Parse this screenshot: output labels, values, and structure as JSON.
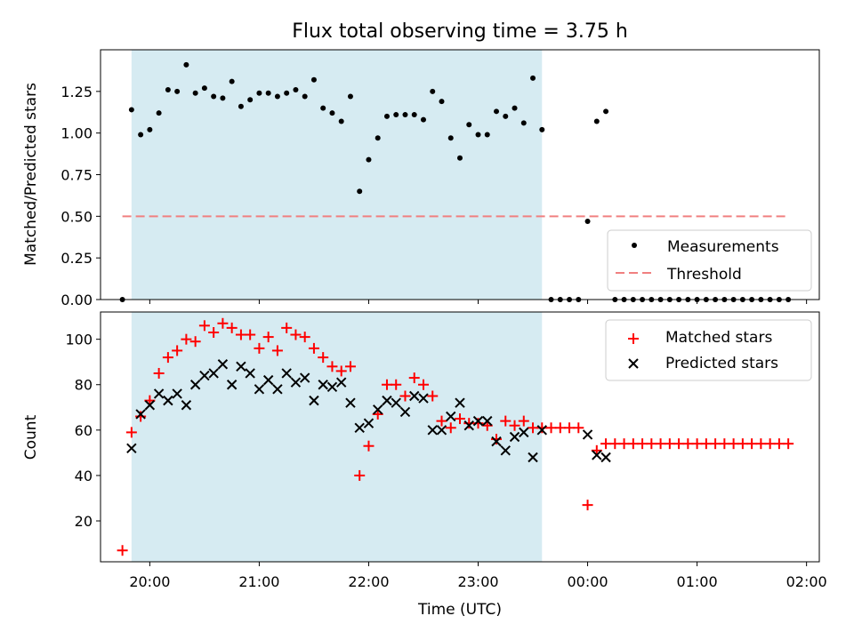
{
  "figure": {
    "title": "Flux total observing time = 3.75 h",
    "xlabel": "Time (UTC)",
    "x_ticks": [
      "20:00",
      "21:00",
      "22:00",
      "23:00",
      "00:00",
      "01:00",
      "02:00"
    ]
  },
  "colors": {
    "band": "#add8e6",
    "threshold": "#f08080",
    "matched": "#ff0000",
    "predicted": "#000000",
    "measurement": "#000000"
  },
  "chart_data": [
    {
      "type": "scatter",
      "panel": "top",
      "ylabel": "Matched/Predicted stars",
      "ylim": [
        0,
        1.5
      ],
      "yticks": [
        "0.00",
        "0.25",
        "0.50",
        "0.75",
        "1.00",
        "1.25"
      ],
      "xlim": [
        "19:33",
        "02:07"
      ],
      "shaded_interval": [
        "19:50",
        "23:35"
      ],
      "threshold": {
        "name": "Threshold",
        "value": 0.5,
        "x_range": [
          "19:45",
          "01:50"
        ]
      },
      "legend": {
        "position": "lower-right",
        "entries": [
          "Measurements",
          "Threshold"
        ]
      },
      "series": [
        {
          "name": "Measurements",
          "x": [
            "19:45",
            "19:50",
            "19:55",
            "20:00",
            "20:05",
            "20:10",
            "20:15",
            "20:20",
            "20:25",
            "20:30",
            "20:35",
            "20:40",
            "20:45",
            "20:50",
            "20:55",
            "21:00",
            "21:05",
            "21:10",
            "21:15",
            "21:20",
            "21:25",
            "21:30",
            "21:35",
            "21:40",
            "21:45",
            "21:50",
            "21:55",
            "22:00",
            "22:05",
            "22:10",
            "22:15",
            "22:20",
            "22:25",
            "22:30",
            "22:35",
            "22:40",
            "22:45",
            "22:50",
            "22:55",
            "23:00",
            "23:05",
            "23:10",
            "23:15",
            "23:20",
            "23:25",
            "23:30",
            "23:35",
            "23:40",
            "23:45",
            "23:50",
            "23:55",
            "00:00",
            "00:05",
            "00:10",
            "00:15",
            "00:20",
            "00:25",
            "00:30",
            "00:35",
            "00:40",
            "00:45",
            "00:50",
            "00:55",
            "01:00",
            "01:05",
            "01:10",
            "01:15",
            "01:20",
            "01:25",
            "01:30",
            "01:35",
            "01:40",
            "01:45",
            "01:50"
          ],
          "y": [
            0.0,
            1.14,
            0.99,
            1.02,
            1.12,
            1.26,
            1.25,
            1.41,
            1.24,
            1.27,
            1.22,
            1.21,
            1.31,
            1.16,
            1.2,
            1.24,
            1.24,
            1.22,
            1.24,
            1.26,
            1.22,
            1.32,
            1.15,
            1.12,
            1.07,
            1.22,
            0.65,
            0.84,
            0.97,
            1.1,
            1.11,
            1.11,
            1.11,
            1.08,
            1.25,
            1.19,
            0.97,
            0.85,
            1.05,
            0.99,
            0.99,
            1.13,
            1.1,
            1.15,
            1.06,
            1.33,
            1.02,
            0.0,
            0.0,
            0.0,
            0.0,
            0.47,
            1.07,
            1.13,
            0.0,
            0.0,
            0.0,
            0.0,
            0.0,
            0.0,
            0.0,
            0.0,
            0.0,
            0.0,
            0.0,
            0.0,
            0.0,
            0.0,
            0.0,
            0.0,
            0.0,
            0.0,
            0.0,
            0.0
          ]
        }
      ]
    },
    {
      "type": "scatter",
      "panel": "bottom",
      "ylabel": "Count",
      "ylim": [
        2,
        112
      ],
      "yticks": [
        "20",
        "40",
        "60",
        "80",
        "100"
      ],
      "xlim": [
        "19:33",
        "02:07"
      ],
      "xlabel": "Time (UTC)",
      "shaded_interval": [
        "19:50",
        "23:35"
      ],
      "legend": {
        "position": "top-right",
        "entries": [
          "Matched stars",
          "Predicted stars"
        ]
      },
      "series": [
        {
          "name": "Matched stars",
          "x": [
            "19:45",
            "19:50",
            "19:55",
            "20:00",
            "20:05",
            "20:10",
            "20:15",
            "20:20",
            "20:25",
            "20:30",
            "20:35",
            "20:40",
            "20:45",
            "20:50",
            "20:55",
            "21:00",
            "21:05",
            "21:10",
            "21:15",
            "21:20",
            "21:25",
            "21:30",
            "21:35",
            "21:40",
            "21:45",
            "21:50",
            "21:55",
            "22:00",
            "22:05",
            "22:10",
            "22:15",
            "22:20",
            "22:25",
            "22:30",
            "22:35",
            "22:40",
            "22:45",
            "22:50",
            "22:55",
            "23:00",
            "23:05",
            "23:10",
            "23:15",
            "23:20",
            "23:25",
            "23:30",
            "23:35",
            "23:40",
            "23:45",
            "23:50",
            "23:55",
            "00:00",
            "00:05",
            "00:10",
            "00:15",
            "00:20",
            "00:25",
            "00:30",
            "00:35",
            "00:40",
            "00:45",
            "00:50",
            "00:55",
            "01:00",
            "01:05",
            "01:10",
            "01:15",
            "01:20",
            "01:25",
            "01:30",
            "01:35",
            "01:40",
            "01:45",
            "01:50"
          ],
          "y": [
            7,
            59,
            66,
            73,
            85,
            92,
            95,
            100,
            99,
            106,
            103,
            107,
            105,
            102,
            102,
            96,
            101,
            95,
            105,
            102,
            101,
            96,
            92,
            88,
            86,
            88,
            40,
            53,
            67,
            80,
            80,
            75,
            83,
            80,
            75,
            64,
            61,
            65,
            63,
            63,
            62,
            56,
            64,
            62,
            64,
            61,
            61,
            61,
            61,
            61,
            61,
            27,
            51,
            54,
            54,
            54,
            54,
            54,
            54,
            54,
            54,
            54,
            54,
            54,
            54,
            54,
            54,
            54,
            54,
            54,
            54,
            54,
            54,
            54
          ]
        },
        {
          "name": "Predicted stars",
          "x": [
            "19:50",
            "19:55",
            "20:00",
            "20:05",
            "20:10",
            "20:15",
            "20:20",
            "20:25",
            "20:30",
            "20:35",
            "20:40",
            "20:45",
            "20:50",
            "20:55",
            "21:00",
            "21:05",
            "21:10",
            "21:15",
            "21:20",
            "21:25",
            "21:30",
            "21:35",
            "21:40",
            "21:45",
            "21:50",
            "21:55",
            "22:00",
            "22:05",
            "22:10",
            "22:15",
            "22:20",
            "22:25",
            "22:30",
            "22:35",
            "22:40",
            "22:45",
            "22:50",
            "22:55",
            "23:00",
            "23:05",
            "23:10",
            "23:15",
            "23:20",
            "23:25",
            "23:30",
            "23:35",
            "00:00",
            "00:05",
            "00:10"
          ],
          "y": [
            52,
            67,
            71,
            76,
            73,
            76,
            71,
            80,
            84,
            85,
            89,
            80,
            88,
            85,
            78,
            82,
            78,
            85,
            81,
            83,
            73,
            80,
            79,
            81,
            72,
            61,
            63,
            69,
            73,
            72,
            68,
            75,
            74,
            60,
            60,
            66,
            72,
            62,
            64,
            64,
            55,
            51,
            57,
            59,
            48,
            60,
            58,
            49,
            48
          ]
        }
      ]
    }
  ]
}
